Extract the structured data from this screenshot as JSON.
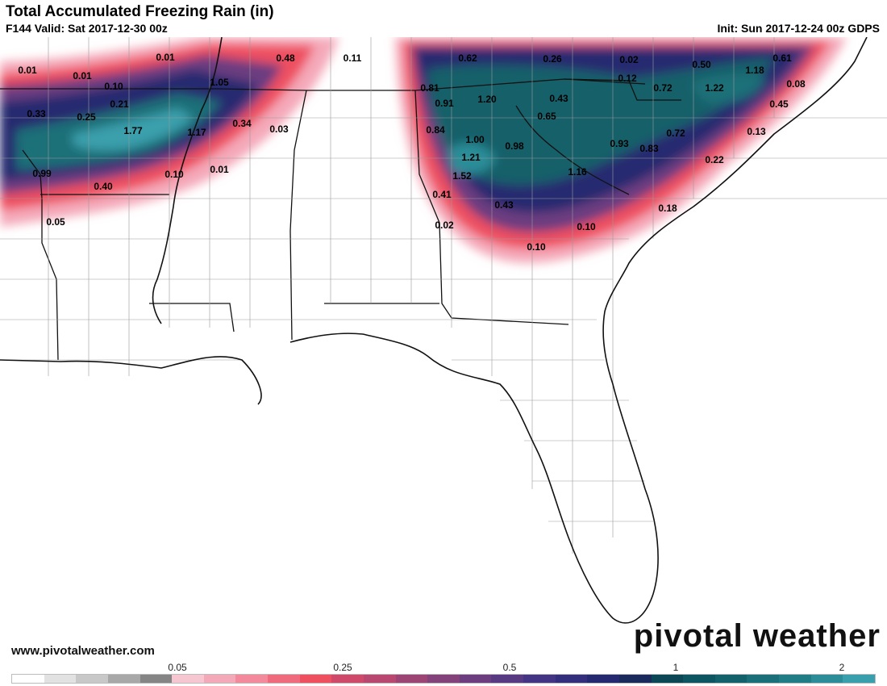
{
  "header": {
    "title": "Total Accumulated Freezing Rain (in)",
    "valid": "F144 Valid: Sat 2017-12-30 00z",
    "init": "Init: Sun 2017-12-24 00z GDPS"
  },
  "footer": {
    "brand": "pivotal weather",
    "site": "www.pivotalweather.com"
  },
  "legend": {
    "ticks": [
      "0.05",
      "0.25",
      "0.5",
      "1",
      "2"
    ],
    "colors": [
      "#ffffff",
      "#e2e2e2",
      "#c8c8c8",
      "#a8a8a8",
      "#858585",
      "#f6c7d1",
      "#f4a9b9",
      "#f28a9c",
      "#f06a7e",
      "#ee5060",
      "#cf4a6a",
      "#b84870",
      "#9c4575",
      "#84427a",
      "#6c3e80",
      "#573a82",
      "#433584",
      "#332f7c",
      "#252a70",
      "#1b2a5c",
      "#0c4756",
      "#0d5560",
      "#13616a",
      "#1a6f78",
      "#207d86",
      "#2c8d98",
      "#3a9fac"
    ]
  },
  "chart_data": {
    "type": "table",
    "values": [
      "0.01",
      "0.01",
      "0.01",
      "0.48",
      "0.11",
      "0.62",
      "0.26",
      "0.02",
      "0.50",
      "0.61",
      "0.10",
      "1.05",
      "0.21",
      "0.33",
      "0.25",
      "0.34",
      "1.77",
      "1.17",
      "0.03",
      "0.81",
      "0.91",
      "1.20",
      "0.43",
      "0.12",
      "0.72",
      "1.22",
      "1.18",
      "0.08",
      "0.45",
      "0.65",
      "0.84",
      "1.00",
      "0.98",
      "0.93",
      "0.83",
      "0.72",
      "0.13",
      "1.21",
      "1.52",
      "0.22",
      "0.99",
      "0.10",
      "0.01",
      "0.40",
      "1.16",
      "0.41",
      "0.05",
      "0.02",
      "0.43",
      "0.10",
      "0.10",
      "0.18"
    ]
  }
}
